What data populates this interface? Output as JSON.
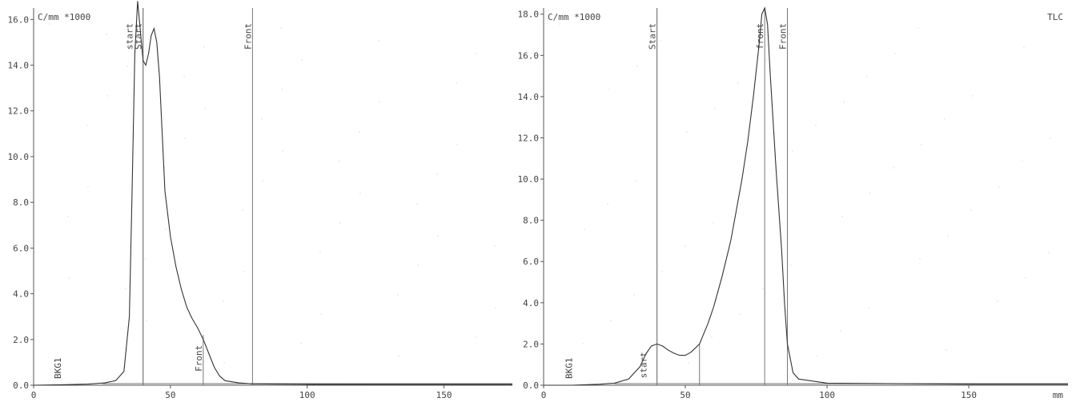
{
  "chart_data": [
    {
      "type": "line",
      "ylabel": "C/mm *1000",
      "xlabel": "",
      "corner_label": "",
      "xlim": [
        0,
        175
      ],
      "ylim": [
        0,
        16.5
      ],
      "x_ticks": [
        0,
        50,
        100,
        150
      ],
      "y_ticks": [
        0.0,
        2.0,
        4.0,
        6.0,
        8.0,
        10.0,
        12.0,
        14.0,
        16.0
      ],
      "y_tick_labels": [
        "0.0",
        "2.0",
        "4.0",
        "6.0",
        "8.0",
        "10.0",
        "12.0",
        "14.0",
        "16.0"
      ],
      "x_tick_labels": [
        "0",
        "50",
        "100",
        "150"
      ],
      "baseline_regions": [
        {
          "label": "BKG1",
          "x": 10
        }
      ],
      "markers": [
        {
          "label": "Start",
          "x": 40
        },
        {
          "label": "start",
          "x": 40
        },
        {
          "label": "Front",
          "x": 80
        },
        {
          "label": "Front",
          "x": 62
        }
      ],
      "series": [
        {
          "x": [
            0,
            10,
            20,
            26,
            30,
            33,
            35,
            36,
            37,
            38,
            39,
            40,
            41,
            42,
            43,
            44,
            45,
            46,
            47,
            48,
            50,
            52,
            54,
            56,
            58,
            60,
            62,
            64,
            66,
            68,
            70,
            75,
            80,
            100,
            150,
            175
          ],
          "y": [
            0.0,
            0.02,
            0.05,
            0.1,
            0.2,
            0.6,
            3.0,
            8.5,
            14.5,
            16.8,
            15.5,
            14.2,
            14.0,
            14.5,
            15.3,
            15.6,
            15.0,
            13.5,
            11.0,
            8.5,
            6.5,
            5.2,
            4.2,
            3.4,
            2.9,
            2.5,
            2.0,
            1.4,
            0.8,
            0.4,
            0.2,
            0.1,
            0.06,
            0.04,
            0.03,
            0.03
          ]
        }
      ]
    },
    {
      "type": "line",
      "ylabel": "C/mm *1000",
      "xlabel": "mm",
      "corner_label": "TLC",
      "xlim": [
        0,
        185
      ],
      "ylim": [
        0,
        18.3
      ],
      "x_ticks": [
        0,
        50,
        100,
        150
      ],
      "y_ticks": [
        0.0,
        2.0,
        4.0,
        6.0,
        8.0,
        10.0,
        12.0,
        14.0,
        16.0,
        18.0
      ],
      "y_tick_labels": [
        "0.0",
        "2.0",
        "4.0",
        "6.0",
        "8.0",
        "10.0",
        "12.0",
        "14.0",
        "16.0",
        "18.0"
      ],
      "x_tick_labels": [
        "0",
        "50",
        "100",
        "150"
      ],
      "baseline_regions": [
        {
          "label": "BKG1",
          "x": 10
        }
      ],
      "markers": [
        {
          "label": "Start",
          "x": 40
        },
        {
          "label": "start",
          "x": 40
        },
        {
          "label": "front",
          "x": 78
        },
        {
          "label": "Front",
          "x": 86
        },
        {
          "label": "",
          "x": 55
        }
      ],
      "series": [
        {
          "x": [
            0,
            10,
            20,
            25,
            30,
            34,
            36,
            38,
            40,
            42,
            44,
            46,
            48,
            50,
            52,
            55,
            58,
            60,
            63,
            66,
            68,
            70,
            72,
            74,
            76,
            77,
            78,
            79,
            80,
            82,
            84,
            85,
            86,
            88,
            90,
            100,
            150,
            185
          ],
          "y": [
            0.0,
            0.0,
            0.05,
            0.1,
            0.3,
            0.9,
            1.5,
            1.9,
            2.0,
            1.9,
            1.7,
            1.55,
            1.45,
            1.45,
            1.6,
            2.0,
            3.0,
            3.8,
            5.3,
            7.0,
            8.5,
            10.0,
            11.8,
            14.0,
            16.5,
            18.0,
            18.3,
            17.5,
            15.0,
            10.5,
            6.5,
            4.0,
            2.0,
            0.6,
            0.3,
            0.1,
            0.05,
            0.05
          ]
        }
      ]
    }
  ]
}
